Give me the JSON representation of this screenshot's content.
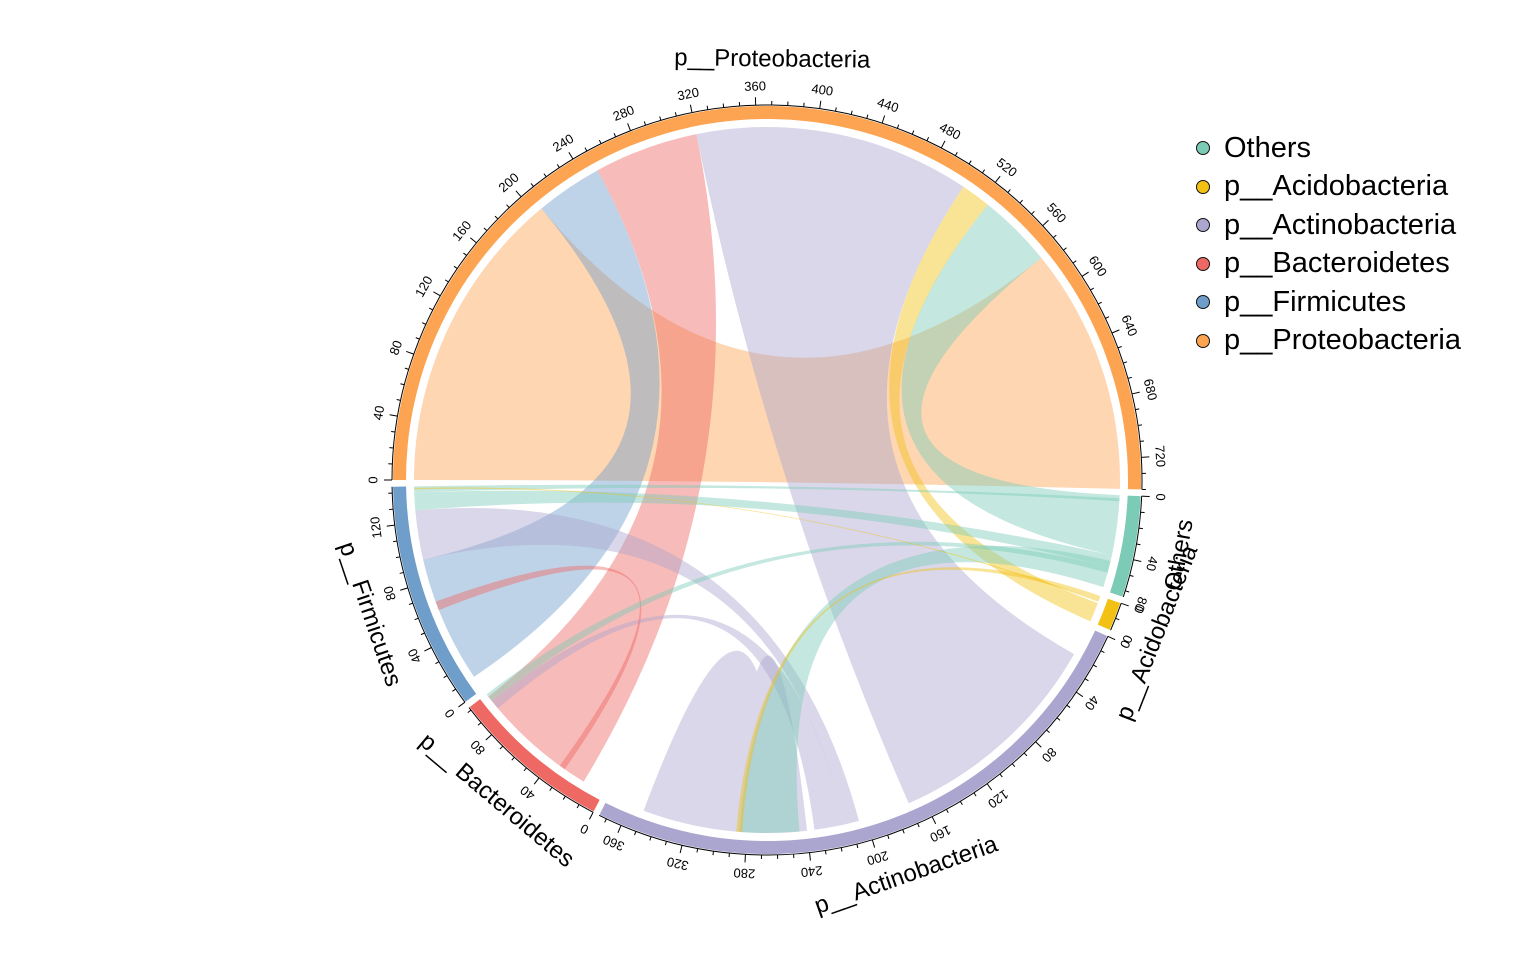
{
  "chart_data": {
    "type": "chord",
    "title": "",
    "sectors": [
      {
        "name": "p__Proteobacteria",
        "label": "p__Proteobacteria",
        "total": 740,
        "color": "#FCA451",
        "major_ticks": [
          0,
          40,
          80,
          120,
          160,
          200,
          240,
          280,
          320,
          360,
          400,
          440,
          480,
          520,
          560,
          600,
          640,
          680,
          720
        ]
      },
      {
        "name": "Others",
        "label": "Others",
        "total": 64,
        "color": "#7CCBB7",
        "major_ticks": [
          0,
          40
        ]
      },
      {
        "name": "p__Acidobacteria",
        "label": "p__Acidobacteria",
        "total": 18,
        "color": "#F2C113",
        "major_ticks": [
          0
        ]
      },
      {
        "name": "p__Actinobacteria",
        "label": "p__Actinobacteria",
        "total": 375,
        "color": "#ABA6CF",
        "major_ticks": [
          0,
          40,
          80,
          120,
          160,
          200,
          240,
          280,
          320,
          360
        ]
      },
      {
        "name": "p__Bacteroidetes",
        "label": "p__ Bacteroidetes",
        "total": 102,
        "color": "#EE6963",
        "major_ticks": [
          0,
          40,
          80
        ]
      },
      {
        "name": "p__Firmicutes",
        "label": "p__Firmicutes",
        "total": 144,
        "color": "#709ECB",
        "major_ticks": [
          0,
          40,
          80,
          120
        ]
      }
    ],
    "extra_tick_labels": [
      {
        "sector": "Others",
        "text": "80"
      },
      {
        "sector": "p__Acidobacteria",
        "text": "0"
      }
    ],
    "links": [
      {
        "from": "p__Proteobacteria",
        "from_range": [
          0,
          205
        ],
        "to": "p__Proteobacteria",
        "to_range": [
          575,
          740
        ],
        "color": "#FCA451"
      },
      {
        "from": "p__Proteobacteria",
        "from_range": [
          205,
          250
        ],
        "to": "p__Firmicutes",
        "to_range": [
          10,
          95
        ],
        "color": "#709ECB"
      },
      {
        "from": "p__Proteobacteria",
        "from_range": [
          250,
          320
        ],
        "to": "p__Bacteroidetes",
        "to_range": [
          15,
          100
        ],
        "color": "#EE6963"
      },
      {
        "from": "p__Proteobacteria",
        "from_range": [
          320,
          505
        ],
        "to": "p__Actinobacteria",
        "to_range": [
          20,
          170
        ],
        "color": "#ABA6CF"
      },
      {
        "from": "p__Proteobacteria",
        "from_range": [
          505,
          525
        ],
        "to": "p__Acidobacteria",
        "to_range": [
          5,
          18
        ],
        "color": "#F2C113"
      },
      {
        "from": "p__Proteobacteria",
        "from_range": [
          525,
          575
        ],
        "to": "Others",
        "to_range": [
          0,
          40
        ],
        "color": "#7CCBB7"
      },
      {
        "from": "p__Actinobacteria",
        "from_range": [
          240,
          350
        ],
        "to": "p__Actinobacteria",
        "to_range": [
          260,
          290
        ],
        "color": "#ABA6CF"
      },
      {
        "from": "p__Actinobacteria",
        "from_range": [
          205,
          215
        ],
        "to": "p__Firmicutes",
        "to_range": [
          95,
          128
        ],
        "color": "#ABA6CF"
      },
      {
        "from": "p__Actinobacteria",
        "from_range": [
          215,
          235
        ],
        "to": "p__Bacteroidetes",
        "to_range": [
          90,
          96
        ],
        "color": "#ABA6CF"
      },
      {
        "from": "p__Actinobacteria",
        "from_range": [
          245,
          285
        ],
        "to": "Others",
        "to_range": [
          44,
          62
        ],
        "color": "#7CCBB7"
      },
      {
        "from": "p__Actinobacteria",
        "from_range": [
          283,
          287
        ],
        "to": "p__Acidobacteria",
        "to_range": [
          0,
          3
        ],
        "color": "#F2C113"
      },
      {
        "from": "p__Firmicutes",
        "from_range": [
          128,
          140
        ],
        "to": "Others",
        "to_range": [
          40,
          48
        ],
        "color": "#7CCBB7"
      },
      {
        "from": "p__Firmicutes",
        "from_range": [
          140,
          144
        ],
        "to": "Others",
        "to_range": [
          2,
          4
        ],
        "color": "#7CCBB7"
      },
      {
        "from": "p__Firmicutes",
        "from_range": [
          60,
          66
        ],
        "to": "p__Bacteroidetes",
        "to_range": [
          30,
          34
        ],
        "color": "#EE6963"
      },
      {
        "from": "p__Bacteroidetes",
        "from_range": [
          96,
          102
        ],
        "to": "Others",
        "to_range": [
          48,
          52
        ],
        "color": "#7CCBB7"
      },
      {
        "from": "p__Firmicutes",
        "from_range": [
          142,
          143
        ],
        "to": "p__Acidobacteria",
        "to_range": [
          3,
          4
        ],
        "color": "#F2C113"
      }
    ]
  },
  "legend": {
    "items": [
      {
        "label": "Others",
        "color": "#7CCBB7"
      },
      {
        "label": "p__Acidobacteria",
        "color": "#F2C113"
      },
      {
        "label": "p__Actinobacteria",
        "color": "#ABA6CF"
      },
      {
        "label": "p__Bacteroidetes",
        "color": "#EE6963"
      },
      {
        "label": "p__Firmicutes",
        "color": "#709ECB"
      },
      {
        "label": "p__Proteobacteria",
        "color": "#FCA451"
      }
    ]
  }
}
